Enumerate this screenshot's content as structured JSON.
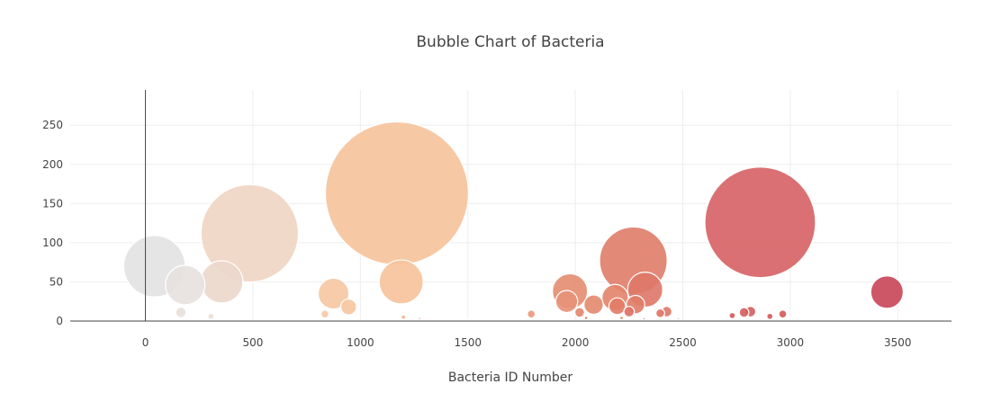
{
  "chart_data": {
    "type": "scatter",
    "title": "Bubble Chart of Bacteria",
    "xlabel": "Bacteria ID Number",
    "ylabel": "",
    "xlim": [
      -350,
      3750
    ],
    "ylim": [
      0,
      295
    ],
    "x_ticks": [
      0,
      500,
      1000,
      1500,
      2000,
      2500,
      3000,
      3500
    ],
    "y_ticks": [
      0,
      50,
      100,
      150,
      200,
      250
    ],
    "points": [
      {
        "x": 42,
        "y": 70,
        "size": 70,
        "color": "#e3e3e3"
      },
      {
        "x": 185,
        "y": 46,
        "size": 45,
        "color": "#e7e2df"
      },
      {
        "x": 355,
        "y": 50,
        "size": 48,
        "color": "#ecd8cc"
      },
      {
        "x": 485,
        "y": 112,
        "size": 111,
        "color": "#f0d6c4"
      },
      {
        "x": 165,
        "y": 11,
        "size": 12,
        "color": "#e8e0da"
      },
      {
        "x": 305,
        "y": 6,
        "size": 7,
        "color": "#ece0d7"
      },
      {
        "x": 875,
        "y": 35,
        "size": 35,
        "color": "#f5c8a4"
      },
      {
        "x": 945,
        "y": 18,
        "size": 18,
        "color": "#f6c7a0"
      },
      {
        "x": 835,
        "y": 9,
        "size": 9,
        "color": "#f6c9a6"
      },
      {
        "x": 1170,
        "y": 163,
        "size": 163,
        "color": "#f6c39c"
      },
      {
        "x": 1190,
        "y": 50,
        "size": 50,
        "color": "#f6c39b"
      },
      {
        "x": 1200,
        "y": 5,
        "size": 5,
        "color": "#f5b28c"
      },
      {
        "x": 1795,
        "y": 9,
        "size": 9,
        "color": "#eb9a7d"
      },
      {
        "x": 1975,
        "y": 38,
        "size": 40,
        "color": "#e48e72"
      },
      {
        "x": 1960,
        "y": 25,
        "size": 25,
        "color": "#e7937a"
      },
      {
        "x": 2020,
        "y": 11,
        "size": 11,
        "color": "#e5856c"
      },
      {
        "x": 2085,
        "y": 21,
        "size": 22,
        "color": "#e48b70"
      },
      {
        "x": 2185,
        "y": 30,
        "size": 30,
        "color": "#e4856d"
      },
      {
        "x": 2195,
        "y": 19,
        "size": 19,
        "color": "#e27e67"
      },
      {
        "x": 2270,
        "y": 77,
        "size": 77,
        "color": "#df7f6c"
      },
      {
        "x": 2325,
        "y": 40,
        "size": 40,
        "color": "#de786a"
      },
      {
        "x": 2280,
        "y": 21,
        "size": 21,
        "color": "#e07e69"
      },
      {
        "x": 2250,
        "y": 12,
        "size": 12,
        "color": "#df7265"
      },
      {
        "x": 2395,
        "y": 10,
        "size": 10,
        "color": "#dd7468"
      },
      {
        "x": 2425,
        "y": 12,
        "size": 12,
        "color": "#de7a6d"
      },
      {
        "x": 2730,
        "y": 7,
        "size": 7,
        "color": "#d5595b"
      },
      {
        "x": 2785,
        "y": 11,
        "size": 11,
        "color": "#d55e5f"
      },
      {
        "x": 2815,
        "y": 12,
        "size": 12,
        "color": "#d46262"
      },
      {
        "x": 2860,
        "y": 126,
        "size": 126,
        "color": "#d76467"
      },
      {
        "x": 2905,
        "y": 6,
        "size": 7,
        "color": "#d25a5c"
      },
      {
        "x": 2965,
        "y": 9,
        "size": 9,
        "color": "#d35b5d"
      },
      {
        "x": 3450,
        "y": 37,
        "size": 37,
        "color": "#c9485a"
      },
      {
        "x": 2215,
        "y": 4,
        "size": 4,
        "color": "#e38a72"
      },
      {
        "x": 2050,
        "y": 4,
        "size": 4,
        "color": "#e7896f"
      },
      {
        "x": 1275,
        "y": 3,
        "size": 3,
        "color": "#f2b791"
      },
      {
        "x": 2320,
        "y": 3,
        "size": 3,
        "color": "#e09a8a"
      },
      {
        "x": 2480,
        "y": 3,
        "size": 3,
        "color": "#ebcfc4"
      },
      {
        "x": 2560,
        "y": 2,
        "size": 2,
        "color": "#ebd5cc"
      },
      {
        "x": 3000,
        "y": 2,
        "size": 2,
        "color": "#e6b8b0"
      },
      {
        "x": 1500,
        "y": 2,
        "size": 2,
        "color": "#f6dccb"
      }
    ]
  }
}
